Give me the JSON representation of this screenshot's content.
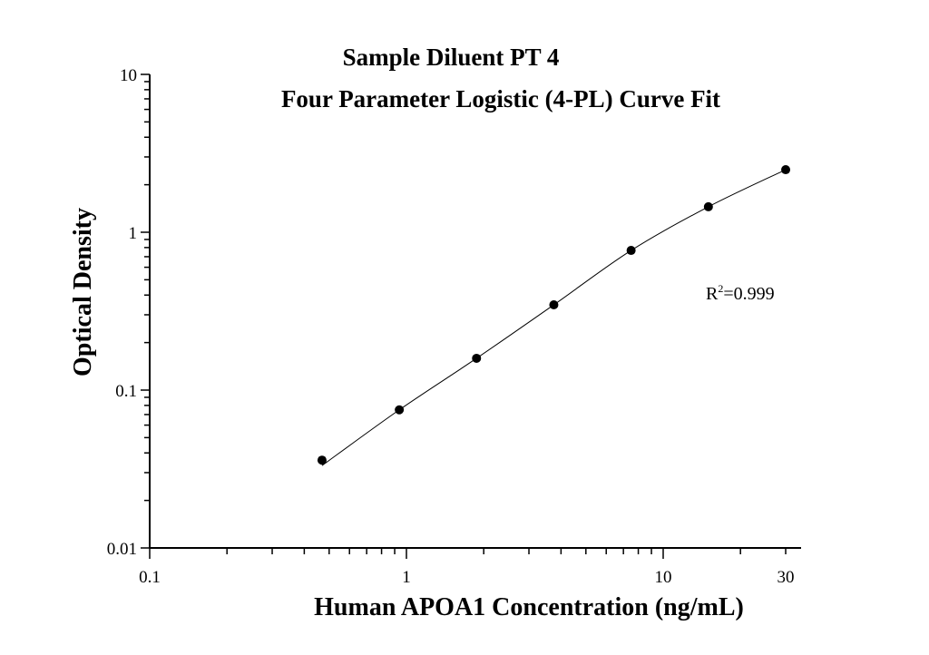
{
  "chart_data": {
    "type": "scatter",
    "title": "Sample Diluent PT 4",
    "subtitle": "Four Parameter Logistic (4-PL) Curve Fit",
    "xlabel": "Human APOA1 Concentration (ng/mL)",
    "ylabel": "Optical Density",
    "xscale": "log",
    "yscale": "log",
    "xlim": [
      0.1,
      35
    ],
    "ylim": [
      0.01,
      10
    ],
    "xticks": [
      {
        "value": 0.1,
        "label": "0.1"
      },
      {
        "value": 1,
        "label": "1"
      },
      {
        "value": 10,
        "label": "10"
      },
      {
        "value": 30,
        "label": "30"
      }
    ],
    "yticks": [
      {
        "value": 0.01,
        "label": "0.01"
      },
      {
        "value": 0.1,
        "label": "0.1"
      },
      {
        "value": 1,
        "label": "1"
      },
      {
        "value": 10,
        "label": "10"
      }
    ],
    "grid": false,
    "annotation": {
      "r2_prefix": "R",
      "r2_sup": "2",
      "r2_value": "=0.999"
    },
    "series": [
      {
        "x": [
          0.469,
          0.938,
          1.875,
          3.75,
          7.5,
          15,
          30
        ],
        "y": [
          0.036,
          0.075,
          0.159,
          0.347,
          0.767,
          1.45,
          2.49
        ],
        "marker": "circle",
        "fit": "4-PL curve",
        "color": "#000000"
      }
    ]
  }
}
